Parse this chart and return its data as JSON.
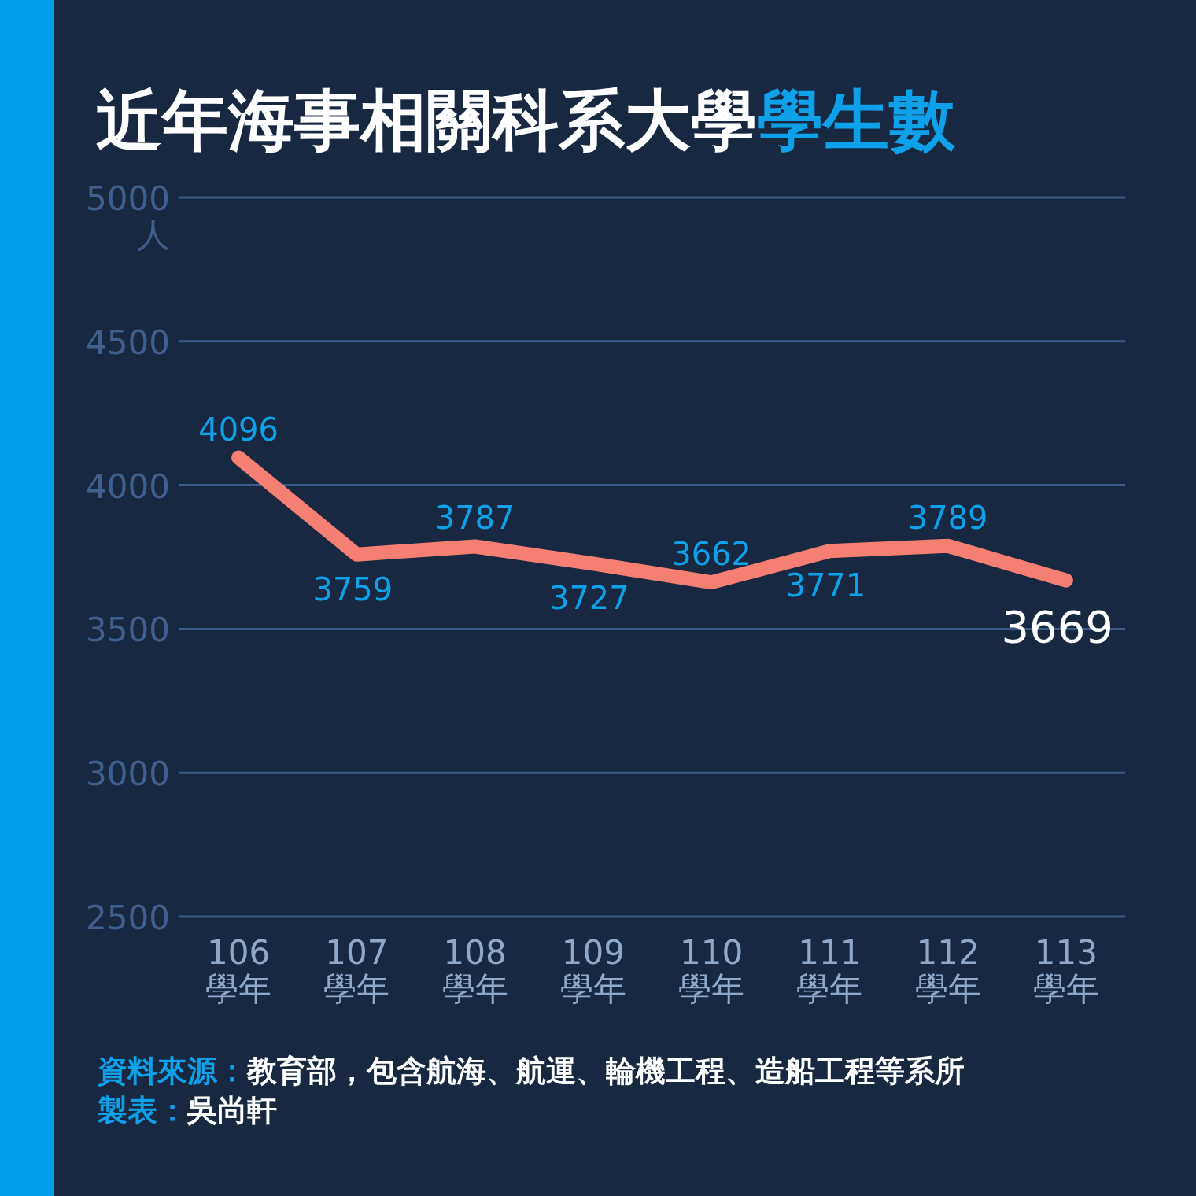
{
  "chart_data": {
    "type": "line",
    "title": "近年海事相關科系大學學生數",
    "ylabel": "人",
    "categories": [
      "106 學年",
      "107 學年",
      "108 學年",
      "109 學年",
      "110 學年",
      "111 學年",
      "112 學年",
      "113 學年"
    ],
    "series": [
      {
        "color": "#f47f72",
        "values": [
          4096,
          3759,
          3787,
          3727,
          3662,
          3771,
          3789,
          3669
        ]
      }
    ],
    "ylim": [
      2500,
      5000
    ],
    "yticks": [
      2500,
      3000,
      3500,
      4000,
      4500,
      5000
    ],
    "grid": "y",
    "data_labels": true,
    "marker": "none",
    "line_style": "solid",
    "annotations": [
      "資料來源：教育部，包含航海、航運、輪機工程、造船工程等系所",
      "製表：吳尚軒"
    ]
  }
}
